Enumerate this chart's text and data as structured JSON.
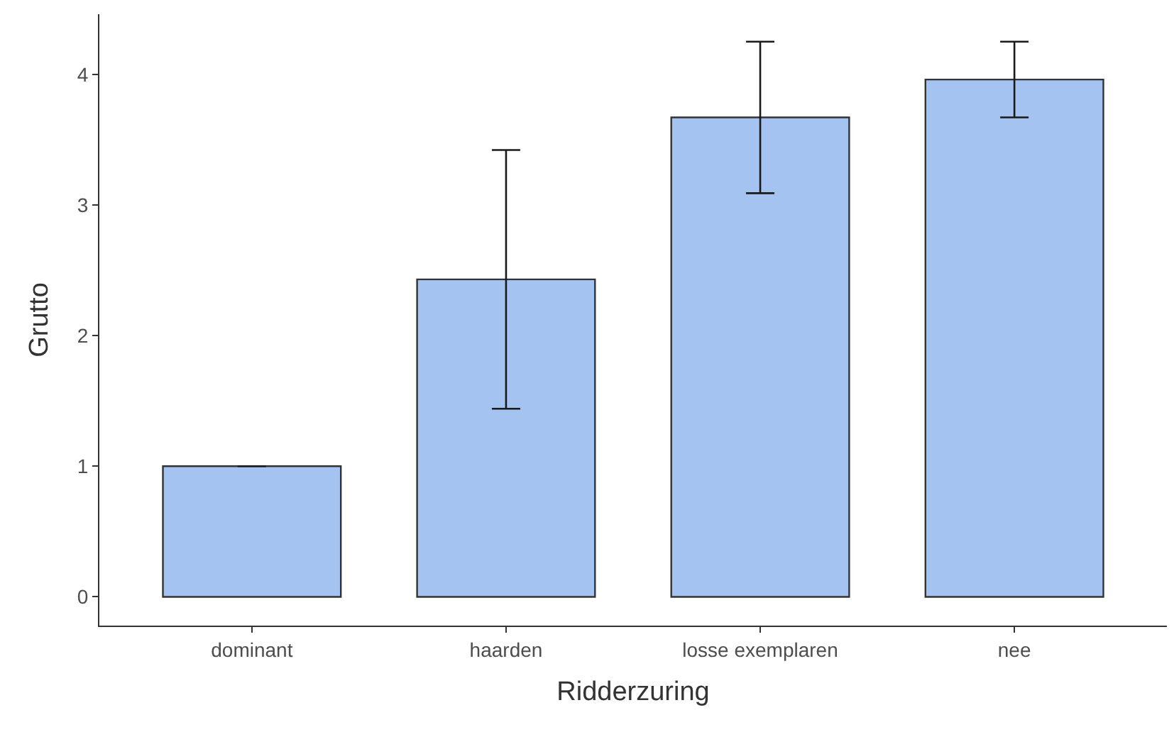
{
  "chart_data": {
    "type": "bar",
    "xlabel": "Ridderzuring",
    "ylabel": "Grutto",
    "categories": [
      "dominant",
      "haarden",
      "losse exemplaren",
      "nee"
    ],
    "values": [
      1.0,
      2.43,
      3.67,
      3.96
    ],
    "errors": [
      0,
      0.99,
      0.58,
      0.29
    ],
    "color": "#a4c3f0",
    "ylim": [
      -0.22,
      4.46
    ],
    "yticks": [
      0,
      1,
      2,
      3,
      4
    ],
    "legend": false
  }
}
